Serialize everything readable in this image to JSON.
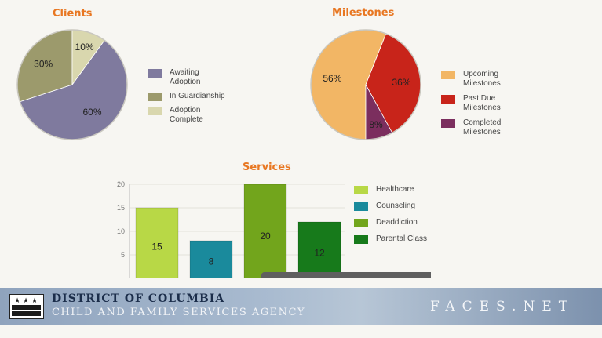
{
  "clients": {
    "title": "Clients",
    "chart_data": {
      "type": "pie",
      "title": "Clients",
      "slices": [
        {
          "label": "Awaiting Adoption",
          "value": 60,
          "display": "60%",
          "color": "#7f7a9e"
        },
        {
          "label": "In Guardianship",
          "value": 30,
          "display": "30%",
          "color": "#9c9a6c"
        },
        {
          "label": "Adoption Complete",
          "value": 10,
          "display": "10%",
          "color": "#d9d7ae"
        }
      ],
      "legend_position": "right"
    }
  },
  "milestones": {
    "title": "Milestones",
    "chart_data": {
      "type": "pie",
      "title": "Milestones",
      "slices": [
        {
          "label": "Upcoming Milestones",
          "value": 56,
          "display": "56%",
          "color": "#f2b665"
        },
        {
          "label": "Past Due Milestones",
          "value": 36,
          "display": "36%",
          "color": "#c8241a"
        },
        {
          "label": "Completed Milestones",
          "value": 8,
          "display": "8%",
          "color": "#7b2e5e"
        }
      ],
      "legend_position": "right"
    }
  },
  "services": {
    "title": "Services",
    "chart_data": {
      "type": "bar",
      "title": "Services",
      "categories": [
        "Healthcare",
        "Counseling",
        "Deaddiction",
        "Parental Class"
      ],
      "values": [
        15,
        8,
        20,
        12
      ],
      "colors": [
        "#b8d846",
        "#1a8a9c",
        "#72a51c",
        "#177a1b"
      ],
      "ylim": [
        0,
        20
      ],
      "yticks": [
        "20",
        "15",
        "10",
        "5"
      ],
      "grid": true,
      "legend_position": "right"
    }
  },
  "footer": {
    "agency_line1": "DISTRICT OF COLUMBIA",
    "agency_line2": "CHILD AND FAMILY SERVICES AGENCY",
    "brand": "FACES.NET",
    "flag_stars": [
      "★",
      "★",
      "★"
    ]
  }
}
